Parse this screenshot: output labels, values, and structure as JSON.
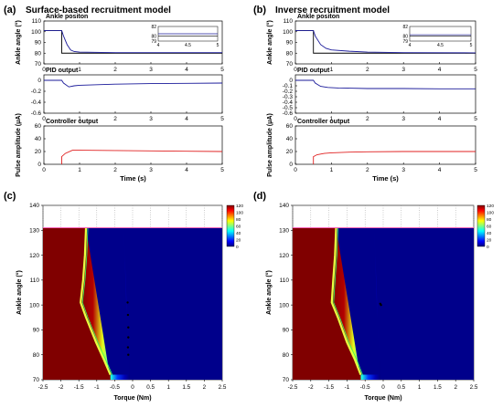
{
  "panels": {
    "a": {
      "label": "(a)",
      "title": "Surface-based recruitment model"
    },
    "b": {
      "label": "(b)",
      "title": "Inverse recruitment model"
    },
    "c": {
      "label": "(c)"
    },
    "d": {
      "label": "(d)"
    }
  },
  "colors": {
    "ankle_trace": "#1a1a9a",
    "pid_trace": "#1a1a9a",
    "controller_trace": "#e02020",
    "setpoint_line": "#000000",
    "heatmap_low": "#00008b",
    "heatmap_high": "#800000"
  },
  "chart_data": [
    {
      "id": "a-ankle",
      "type": "line",
      "title": "Ankle positon",
      "ylabel": "Ankle angle (°)",
      "xlabel": "",
      "xlim": [
        0,
        5
      ],
      "ylim": [
        70,
        110
      ],
      "xticks": [
        "0",
        "1",
        "2",
        "3",
        "4",
        "5"
      ],
      "yticks": [
        "70",
        "80",
        "90",
        "100",
        "110"
      ],
      "series": [
        {
          "x": [
            0,
            0.5,
            0.55,
            0.65,
            0.75,
            0.85,
            1.0,
            2.0,
            5.0
          ],
          "y": [
            101,
            101,
            96,
            88,
            83,
            81.5,
            81,
            80.5,
            80.5
          ]
        }
      ],
      "setpoint": {
        "x": [
          0,
          0.5,
          0.5,
          5.0
        ],
        "y": [
          101,
          101,
          80,
          80
        ]
      },
      "inset": {
        "xlim": [
          4,
          5
        ],
        "ylim": [
          79,
          82
        ],
        "xticks": [
          "4",
          "4.5",
          "5"
        ],
        "yticks": [
          "79",
          "80",
          "82"
        ]
      }
    },
    {
      "id": "a-pid",
      "type": "line",
      "title": "PID output",
      "ylabel": "",
      "xlabel": "",
      "xlim": [
        0,
        5
      ],
      "ylim": [
        -0.6,
        0.1
      ],
      "xticks": [
        "0",
        "1",
        "2",
        "3",
        "4",
        "5"
      ],
      "yticks": [
        "0",
        "-0.2",
        "-0.4",
        "-0.6"
      ],
      "series": [
        {
          "x": [
            0,
            0.5,
            0.55,
            0.7,
            0.85,
            1.0,
            2.0,
            3.0,
            4.0,
            5.0
          ],
          "y": [
            0,
            0,
            -0.05,
            -0.12,
            -0.1,
            -0.09,
            -0.07,
            -0.06,
            -0.055,
            -0.05
          ]
        }
      ]
    },
    {
      "id": "a-controller",
      "type": "line",
      "title": "Controller output",
      "ylabel": "Pulse amplitude (μA)",
      "xlabel": "Time (s)",
      "xlim": [
        0,
        5
      ],
      "ylim": [
        0,
        60
      ],
      "xticks": [
        "0",
        "1",
        "2",
        "3",
        "4",
        "5"
      ],
      "yticks": [
        "0",
        "20",
        "40",
        "60"
      ],
      "series": [
        {
          "x": [
            0.5,
            0.5,
            0.6,
            0.8,
            1.0,
            2.0,
            3.0,
            4.0,
            5.0
          ],
          "y": [
            0,
            12,
            17,
            22,
            22,
            21.5,
            21,
            20.5,
            20
          ]
        }
      ]
    },
    {
      "id": "b-ankle",
      "type": "line",
      "title": "Ankle positon",
      "ylabel": "Ankle angle (°)",
      "xlabel": "",
      "xlim": [
        0,
        5
      ],
      "ylim": [
        70,
        110
      ],
      "xticks": [
        "0",
        "1",
        "2",
        "3",
        "4",
        "5"
      ],
      "yticks": [
        "70",
        "80",
        "90",
        "100",
        "110"
      ],
      "series": [
        {
          "x": [
            0,
            0.5,
            0.55,
            0.7,
            0.85,
            1.0,
            1.5,
            2.0,
            3.0,
            5.0
          ],
          "y": [
            101,
            101,
            96,
            88,
            84.5,
            83,
            81.8,
            81,
            80.5,
            80.3
          ]
        }
      ],
      "setpoint": {
        "x": [
          0,
          0.5,
          0.5,
          5.0
        ],
        "y": [
          101,
          101,
          80,
          80
        ]
      },
      "inset": {
        "xlim": [
          4,
          5
        ],
        "ylim": [
          79,
          82
        ],
        "xticks": [
          "4",
          "4.5",
          "5"
        ],
        "yticks": [
          "79",
          "80",
          "82"
        ]
      }
    },
    {
      "id": "b-pid",
      "type": "line",
      "title": "PID output",
      "ylabel": "",
      "xlabel": "",
      "xlim": [
        0,
        5
      ],
      "ylim": [
        -0.6,
        0.1
      ],
      "xticks": [
        "0",
        "1",
        "2",
        "3",
        "4",
        "5"
      ],
      "yticks": [
        "0",
        "-0.1",
        "-0.2",
        "-0.3",
        "-0.4",
        "-0.5",
        "-0.6"
      ],
      "series": [
        {
          "x": [
            0,
            0.5,
            0.55,
            0.7,
            0.9,
            1.2,
            2.0,
            3.0,
            4.0,
            5.0
          ],
          "y": [
            0,
            0,
            -0.05,
            -0.11,
            -0.13,
            -0.14,
            -0.15,
            -0.15,
            -0.155,
            -0.155
          ]
        }
      ]
    },
    {
      "id": "b-controller",
      "type": "line",
      "title": "Controller output",
      "ylabel": "Pulse amplitude (μA)",
      "xlabel": "Time (s)",
      "xlim": [
        0,
        5
      ],
      "ylim": [
        0,
        60
      ],
      "xticks": [
        "0",
        "1",
        "2",
        "3",
        "4",
        "5"
      ],
      "yticks": [
        "0",
        "20",
        "40",
        "60"
      ],
      "series": [
        {
          "x": [
            0.5,
            0.5,
            0.6,
            0.8,
            1.0,
            1.5,
            2.0,
            3.0,
            4.0,
            5.0
          ],
          "y": [
            0,
            12,
            15,
            17,
            18,
            19,
            19.5,
            20,
            20,
            20
          ]
        }
      ]
    },
    {
      "id": "c-heatmap",
      "type": "heatmap",
      "xlabel": "Torque (Nm)",
      "ylabel": "Ankle angle (°)",
      "xlim": [
        -2.5,
        2.5
      ],
      "ylim": [
        70,
        140
      ],
      "data_ylim": [
        70,
        131
      ],
      "xticks": [
        "-2.5",
        "-2",
        "-1.5",
        "-1",
        "-0.5",
        "0",
        "0.5",
        "1",
        "1.5",
        "2",
        "2.5"
      ],
      "yticks": [
        "70",
        "80",
        "90",
        "100",
        "110",
        "120",
        "130",
        "140"
      ],
      "colorbar": {
        "min": 0,
        "max": 120,
        "ticks": [
          "0",
          "20",
          "40",
          "60",
          "80",
          "100",
          "120"
        ]
      },
      "boundary": {
        "angle": [
          131,
          120,
          110,
          101,
          95,
          85,
          78,
          72
        ],
        "sat_edge": [
          -1.3,
          -1.33,
          -1.38,
          -1.45,
          -1.3,
          -1.02,
          -0.8,
          -0.62
        ],
        "zero_edge": [
          -0.25,
          -0.22,
          -0.2,
          -0.18,
          -0.15,
          -0.12,
          -0.1,
          -0.08
        ]
      },
      "trajectory": {
        "torque": [
          -0.14,
          -0.13,
          -0.12,
          -0.12,
          -0.13,
          -0.12
        ],
        "angle": [
          101,
          96,
          91,
          87,
          83,
          80
        ]
      }
    },
    {
      "id": "d-heatmap",
      "type": "heatmap",
      "xlabel": "Torque (Nm)",
      "ylabel": "Ankle angle (°)",
      "xlim": [
        -2.5,
        2.5
      ],
      "ylim": [
        70,
        140
      ],
      "data_ylim": [
        70,
        131
      ],
      "xticks": [
        "-2.5",
        "-2",
        "-1.5",
        "-1",
        "-0.5",
        "0",
        "0.5",
        "1",
        "1.5",
        "2",
        "2.5"
      ],
      "yticks": [
        "70",
        "80",
        "90",
        "100",
        "110",
        "120",
        "130",
        "140"
      ],
      "colorbar": {
        "min": 0,
        "max": 120,
        "ticks": [
          "0",
          "20",
          "40",
          "60",
          "80",
          "100",
          "120"
        ]
      },
      "boundary": {
        "angle": [
          131,
          120,
          110,
          101,
          95,
          85,
          78,
          72
        ],
        "sat_edge": [
          -1.3,
          -1.33,
          -1.38,
          -1.42,
          -1.25,
          -1.0,
          -0.78,
          -0.62
        ],
        "zero_edge": [
          -0.25,
          -0.22,
          -0.2,
          -0.18,
          -0.15,
          -0.12,
          -0.1,
          -0.08
        ]
      },
      "trajectory": {
        "torque": [
          -0.08,
          -0.06
        ],
        "angle": [
          100.5,
          100
        ]
      }
    }
  ]
}
